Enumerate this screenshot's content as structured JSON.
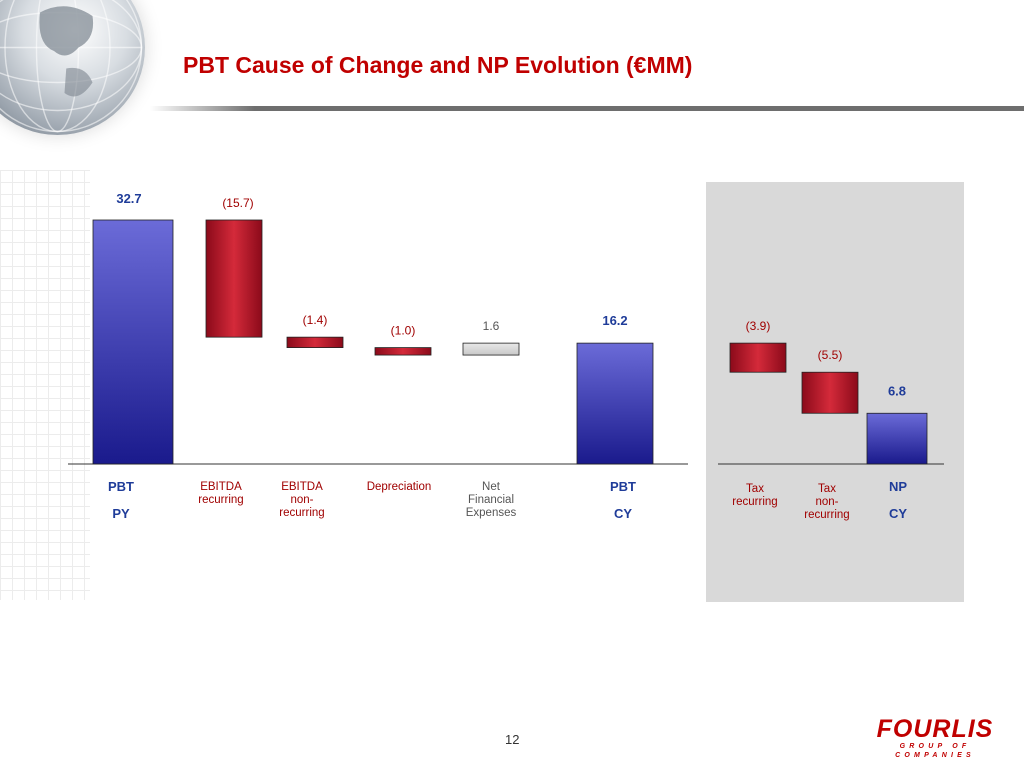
{
  "slide": {
    "title": "PBT Cause of Change and NP Evolution (€MM)",
    "page_number": "12"
  },
  "logo": {
    "main": "FOURLIS",
    "sub": "GROUP OF COMPANIES"
  },
  "colors": {
    "title": "#c00000",
    "total_bar": "#1a1a8c",
    "negative_bar": "#8b0a1a",
    "positive_bar": "#c8c8c8",
    "total_label": "#1f3c99",
    "panel_background": "#d9d9d9"
  },
  "chart_data": {
    "type": "waterfall",
    "unit": "€MM",
    "ylim": [
      0,
      32.7
    ],
    "steps": [
      {
        "name": "PBT PY",
        "label": [
          "PBT",
          "PY"
        ],
        "value": 32.7,
        "display": "32.7",
        "kind": "total",
        "panel": "left"
      },
      {
        "name": "EBITDA recurring",
        "label": [
          "EBITDA",
          "recurring"
        ],
        "value": -15.7,
        "display": "(15.7)",
        "kind": "decrease",
        "panel": "left"
      },
      {
        "name": "EBITDA non-recurring",
        "label": [
          "EBITDA",
          "non-",
          "recurring"
        ],
        "value": -1.4,
        "display": "(1.4)",
        "kind": "decrease",
        "panel": "left"
      },
      {
        "name": "Depreciation",
        "label": [
          "Depreciation"
        ],
        "value": -1.0,
        "display": "(1.0)",
        "kind": "decrease",
        "panel": "left"
      },
      {
        "name": "Net Financial Expenses",
        "label": [
          "Net",
          "Financial",
          "Expenses"
        ],
        "value": 1.6,
        "display": "1.6",
        "kind": "increase",
        "panel": "left"
      },
      {
        "name": "PBT CY",
        "label": [
          "PBT",
          "CY"
        ],
        "value": 16.2,
        "display": "16.2",
        "kind": "total",
        "panel": "left"
      },
      {
        "name": "Tax recurring",
        "label": [
          "Tax",
          "recurring"
        ],
        "value": -3.9,
        "display": "(3.9)",
        "kind": "decrease",
        "panel": "right"
      },
      {
        "name": "Tax non-recurring",
        "label": [
          "Tax",
          "non-",
          "recurring"
        ],
        "value": -5.5,
        "display": "(5.5)",
        "kind": "decrease",
        "panel": "right"
      },
      {
        "name": "NP CY",
        "label": [
          "NP",
          "CY"
        ],
        "value": 6.8,
        "display": "6.8",
        "kind": "total",
        "panel": "right"
      }
    ]
  }
}
